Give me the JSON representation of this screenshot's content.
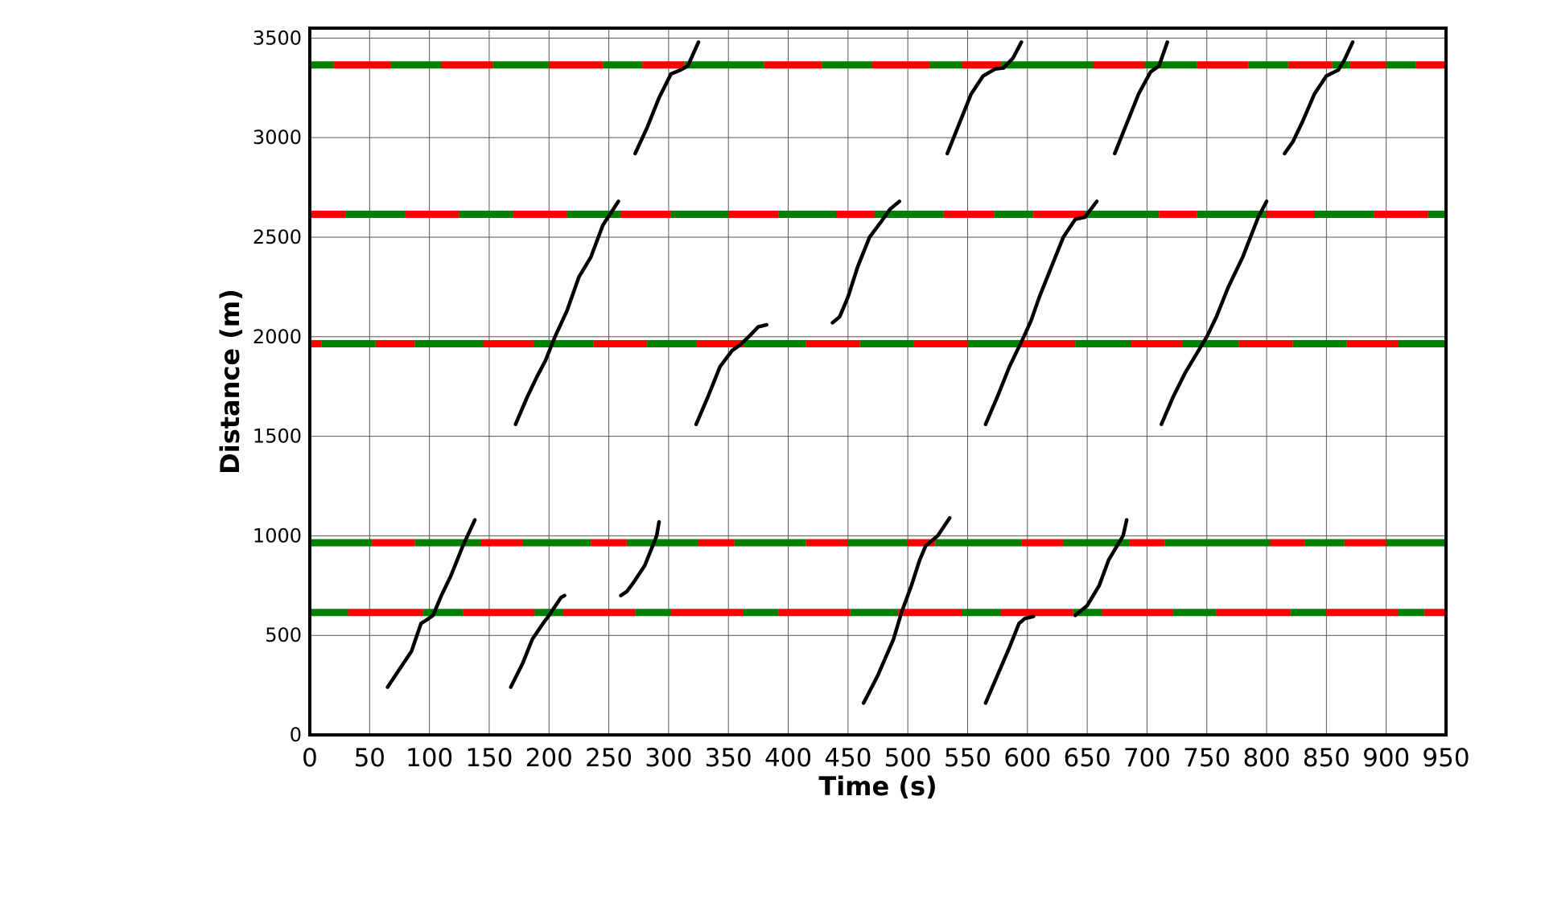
{
  "chart_data": {
    "type": "line",
    "title": "",
    "xlabel": "Time (s)",
    "ylabel": "Distance (m)",
    "xlim": [
      0,
      950
    ],
    "ylim": [
      0,
      3550
    ],
    "xticks": [
      0,
      50,
      100,
      150,
      200,
      250,
      300,
      350,
      400,
      450,
      500,
      550,
      600,
      650,
      700,
      750,
      800,
      850,
      900,
      950
    ],
    "yticks": [
      0,
      500,
      1000,
      1500,
      2000,
      2500,
      3000,
      3500
    ],
    "grid": true,
    "colors": {
      "green_phase": "#008000",
      "red_phase": "#ff0000",
      "trajectory": "#000000"
    },
    "signals": [
      {
        "distance": 615,
        "phases": [
          [
            "g",
            0,
            32
          ],
          [
            "r",
            32,
            95
          ],
          [
            "g",
            95,
            128
          ],
          [
            "r",
            128,
            188
          ],
          [
            "g",
            188,
            212
          ],
          [
            "r",
            212,
            272
          ],
          [
            "g",
            272,
            302
          ],
          [
            "r",
            302,
            362
          ],
          [
            "g",
            362,
            392
          ],
          [
            "r",
            392,
            452
          ],
          [
            "g",
            452,
            492
          ],
          [
            "r",
            492,
            545
          ],
          [
            "g",
            545,
            578
          ],
          [
            "r",
            578,
            638
          ],
          [
            "g",
            638,
            662
          ],
          [
            "r",
            662,
            722
          ],
          [
            "g",
            722,
            758
          ],
          [
            "r",
            758,
            820
          ],
          [
            "g",
            820,
            850
          ],
          [
            "r",
            850,
            910
          ],
          [
            "g",
            910,
            932
          ],
          [
            "r",
            932,
            950
          ]
        ]
      },
      {
        "distance": 965,
        "phases": [
          [
            "g",
            0,
            52
          ],
          [
            "r",
            52,
            88
          ],
          [
            "g",
            88,
            143
          ],
          [
            "r",
            143,
            178
          ],
          [
            "g",
            178,
            235
          ],
          [
            "r",
            235,
            265
          ],
          [
            "g",
            265,
            325
          ],
          [
            "r",
            325,
            355
          ],
          [
            "g",
            355,
            415
          ],
          [
            "r",
            415,
            450
          ],
          [
            "g",
            450,
            500
          ],
          [
            "r",
            500,
            523
          ],
          [
            "g",
            523,
            595
          ],
          [
            "r",
            595,
            630
          ],
          [
            "g",
            630,
            685
          ],
          [
            "r",
            685,
            715
          ],
          [
            "g",
            715,
            803
          ],
          [
            "r",
            803,
            832
          ],
          [
            "g",
            832,
            865
          ],
          [
            "r",
            865,
            900
          ],
          [
            "g",
            900,
            950
          ]
        ]
      },
      {
        "distance": 1965,
        "phases": [
          [
            "r",
            0,
            10
          ],
          [
            "g",
            10,
            55
          ],
          [
            "r",
            55,
            88
          ],
          [
            "g",
            88,
            145
          ],
          [
            "r",
            145,
            187
          ],
          [
            "g",
            187,
            237
          ],
          [
            "r",
            237,
            282
          ],
          [
            "g",
            282,
            323
          ],
          [
            "r",
            323,
            363
          ],
          [
            "g",
            363,
            415
          ],
          [
            "r",
            415,
            460
          ],
          [
            "g",
            460,
            505
          ],
          [
            "r",
            505,
            550
          ],
          [
            "g",
            550,
            595
          ],
          [
            "r",
            595,
            640
          ],
          [
            "g",
            640,
            687
          ],
          [
            "r",
            687,
            730
          ],
          [
            "g",
            730,
            777
          ],
          [
            "r",
            777,
            822
          ],
          [
            "g",
            822,
            867
          ],
          [
            "r",
            867,
            910
          ],
          [
            "g",
            910,
            950
          ]
        ]
      },
      {
        "distance": 2615,
        "phases": [
          [
            "r",
            0,
            30
          ],
          [
            "g",
            30,
            80
          ],
          [
            "r",
            80,
            125
          ],
          [
            "g",
            125,
            170
          ],
          [
            "r",
            170,
            215
          ],
          [
            "g",
            215,
            260
          ],
          [
            "r",
            260,
            302
          ],
          [
            "g",
            302,
            350
          ],
          [
            "r",
            350,
            392
          ],
          [
            "g",
            392,
            440
          ],
          [
            "r",
            440,
            472
          ],
          [
            "g",
            472,
            530
          ],
          [
            "r",
            530,
            572
          ],
          [
            "g",
            572,
            605
          ],
          [
            "r",
            605,
            648
          ],
          [
            "g",
            648,
            710
          ],
          [
            "r",
            710,
            742
          ],
          [
            "g",
            742,
            800
          ],
          [
            "r",
            800,
            840
          ],
          [
            "g",
            840,
            890
          ],
          [
            "r",
            890,
            935
          ],
          [
            "g",
            935,
            950
          ]
        ]
      },
      {
        "distance": 3365,
        "phases": [
          [
            "g",
            0,
            20
          ],
          [
            "r",
            20,
            68
          ],
          [
            "g",
            68,
            110
          ],
          [
            "r",
            110,
            153
          ],
          [
            "g",
            153,
            200
          ],
          [
            "r",
            200,
            245
          ],
          [
            "g",
            245,
            278
          ],
          [
            "r",
            278,
            313
          ],
          [
            "g",
            313,
            380
          ],
          [
            "r",
            380,
            428
          ],
          [
            "g",
            428,
            470
          ],
          [
            "r",
            470,
            518
          ],
          [
            "g",
            518,
            545
          ],
          [
            "r",
            545,
            578
          ],
          [
            "g",
            578,
            655
          ],
          [
            "r",
            655,
            698
          ],
          [
            "g",
            698,
            742
          ],
          [
            "r",
            742,
            785
          ],
          [
            "g",
            785,
            818
          ],
          [
            "r",
            818,
            855
          ],
          [
            "g",
            855,
            870
          ],
          [
            "r",
            870,
            900
          ],
          [
            "g",
            900,
            925
          ],
          [
            "r",
            925,
            950
          ]
        ]
      }
    ],
    "trajectories": [
      [
        [
          65,
          240
        ],
        [
          75,
          330
        ],
        [
          85,
          420
        ],
        [
          93,
          560
        ],
        [
          97,
          575
        ],
        [
          103,
          600
        ],
        [
          110,
          700
        ],
        [
          118,
          800
        ],
        [
          128,
          950
        ],
        [
          138,
          1080
        ]
      ],
      [
        [
          168,
          240
        ],
        [
          178,
          360
        ],
        [
          186,
          480
        ],
        [
          195,
          560
        ],
        [
          200,
          600
        ],
        [
          210,
          690
        ],
        [
          213,
          700
        ]
      ],
      [
        [
          260,
          700
        ],
        [
          265,
          720
        ],
        [
          270,
          760
        ],
        [
          280,
          850
        ],
        [
          290,
          1000
        ],
        [
          292,
          1070
        ]
      ],
      [
        [
          463,
          160
        ],
        [
          475,
          300
        ],
        [
          488,
          480
        ],
        [
          495,
          620
        ],
        [
          503,
          750
        ],
        [
          510,
          880
        ],
        [
          515,
          950
        ],
        [
          525,
          1000
        ],
        [
          535,
          1090
        ]
      ],
      [
        [
          565,
          160
        ],
        [
          575,
          300
        ],
        [
          585,
          440
        ],
        [
          593,
          560
        ],
        [
          598,
          585
        ],
        [
          605,
          595
        ]
      ],
      [
        [
          640,
          600
        ],
        [
          650,
          650
        ],
        [
          660,
          750
        ],
        [
          668,
          880
        ],
        [
          680,
          1000
        ],
        [
          683,
          1080
        ]
      ],
      [
        [
          172,
          1560
        ],
        [
          182,
          1700
        ],
        [
          190,
          1800
        ],
        [
          197,
          1880
        ],
        [
          205,
          2000
        ],
        [
          215,
          2130
        ],
        [
          225,
          2300
        ],
        [
          235,
          2400
        ],
        [
          245,
          2560
        ],
        [
          258,
          2680
        ]
      ],
      [
        [
          323,
          1560
        ],
        [
          333,
          1700
        ],
        [
          343,
          1850
        ],
        [
          353,
          1930
        ],
        [
          360,
          1960
        ],
        [
          367,
          2000
        ],
        [
          375,
          2050
        ],
        [
          382,
          2060
        ]
      ],
      [
        [
          437,
          2070
        ],
        [
          443,
          2100
        ],
        [
          450,
          2200
        ],
        [
          458,
          2350
        ],
        [
          468,
          2500
        ],
        [
          478,
          2580
        ],
        [
          485,
          2640
        ],
        [
          493,
          2680
        ]
      ],
      [
        [
          565,
          1560
        ],
        [
          575,
          1700
        ],
        [
          585,
          1850
        ],
        [
          597,
          2000
        ],
        [
          603,
          2080
        ],
        [
          610,
          2200
        ],
        [
          620,
          2350
        ],
        [
          630,
          2500
        ],
        [
          640,
          2590
        ],
        [
          648,
          2600
        ],
        [
          658,
          2680
        ]
      ],
      [
        [
          712,
          1560
        ],
        [
          722,
          1700
        ],
        [
          732,
          1820
        ],
        [
          742,
          1920
        ],
        [
          750,
          2000
        ],
        [
          758,
          2100
        ],
        [
          768,
          2250
        ],
        [
          780,
          2400
        ],
        [
          793,
          2600
        ],
        [
          800,
          2680
        ]
      ],
      [
        [
          272,
          2920
        ],
        [
          282,
          3050
        ],
        [
          292,
          3200
        ],
        [
          302,
          3320
        ],
        [
          310,
          3340
        ],
        [
          316,
          3360
        ],
        [
          325,
          3480
        ]
      ],
      [
        [
          533,
          2920
        ],
        [
          543,
          3070
        ],
        [
          553,
          3220
        ],
        [
          563,
          3310
        ],
        [
          573,
          3345
        ],
        [
          580,
          3350
        ],
        [
          588,
          3400
        ],
        [
          595,
          3480
        ]
      ],
      [
        [
          673,
          2920
        ],
        [
          683,
          3070
        ],
        [
          693,
          3220
        ],
        [
          703,
          3330
        ],
        [
          710,
          3360
        ],
        [
          717,
          3480
        ]
      ],
      [
        [
          815,
          2920
        ],
        [
          822,
          2980
        ],
        [
          830,
          3080
        ],
        [
          840,
          3220
        ],
        [
          850,
          3310
        ],
        [
          860,
          3340
        ],
        [
          865,
          3390
        ],
        [
          872,
          3480
        ]
      ]
    ]
  }
}
